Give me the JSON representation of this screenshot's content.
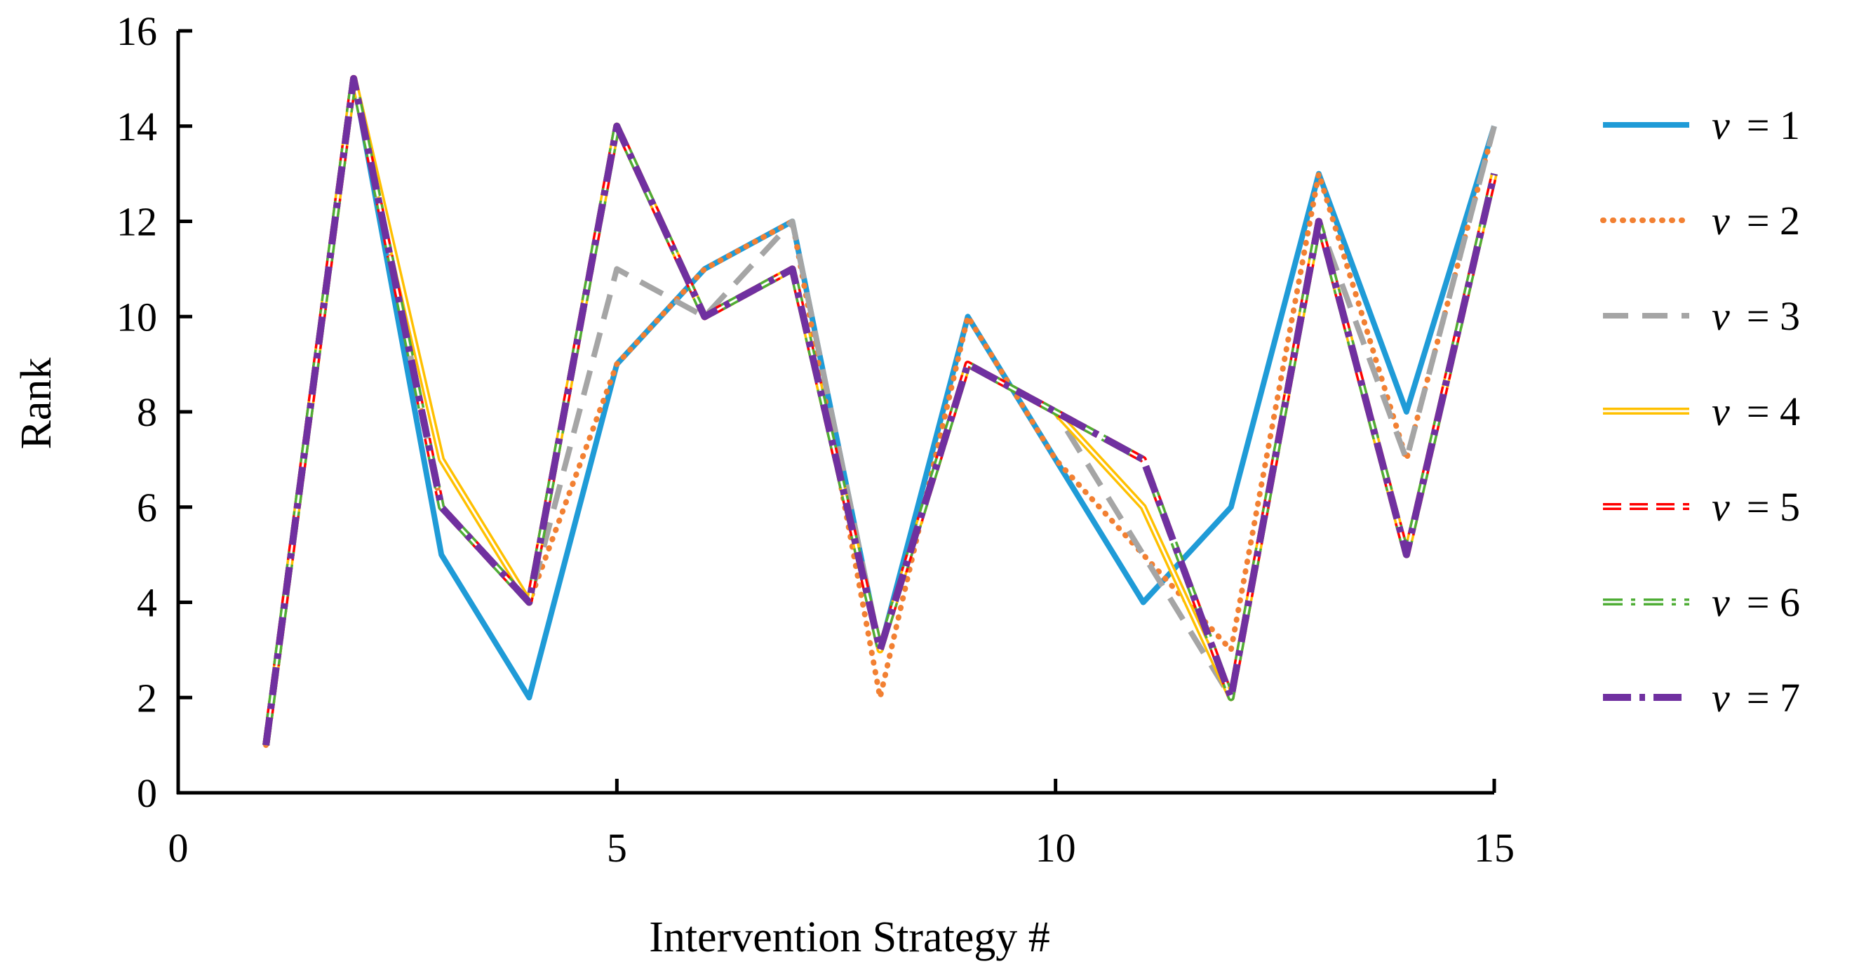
{
  "chart_data": {
    "type": "line",
    "xlabel": "Intervention Strategy #",
    "ylabel": "Rank",
    "xlim": [
      0,
      15
    ],
    "ylim": [
      0,
      16
    ],
    "xticks": [
      0,
      5,
      10,
      15
    ],
    "yticks": [
      0,
      2,
      4,
      6,
      8,
      10,
      12,
      14,
      16
    ],
    "grid": false,
    "legend": "right",
    "x": [
      1,
      2,
      3,
      4,
      5,
      6,
      7,
      8,
      9,
      10,
      11,
      12,
      13,
      14,
      15
    ],
    "series": [
      {
        "name": "v = 1",
        "var": "v",
        "eq": "= 1",
        "color": "#1F9BD7",
        "style": "solid",
        "values": [
          1,
          15,
          5,
          2,
          9,
          11,
          12,
          3,
          10,
          7,
          4,
          6,
          13,
          8,
          14
        ]
      },
      {
        "name": "v = 2",
        "var": "v",
        "eq": "= 2",
        "color": "#F28032",
        "style": "dotted",
        "values": [
          1,
          15,
          6,
          4,
          9,
          11,
          12,
          2,
          10,
          7,
          5,
          3,
          13,
          7,
          14
        ]
      },
      {
        "name": "v = 3",
        "var": "v",
        "eq": "= 3",
        "color": "#A5A5A5",
        "style": "dashed",
        "values": [
          1,
          15,
          6,
          4,
          11,
          10,
          12,
          3,
          9,
          8,
          5,
          2,
          12,
          7,
          14
        ]
      },
      {
        "name": "v = 4",
        "var": "v",
        "eq": "= 4",
        "color": "#FFC000",
        "style": "double",
        "values": [
          1,
          15,
          7,
          4,
          14,
          10,
          11,
          3,
          9,
          8,
          6,
          2,
          12,
          5,
          13
        ]
      },
      {
        "name": "v = 5",
        "var": "v",
        "eq": "= 5",
        "color": "#FF0000",
        "style": "double-dashed",
        "values": [
          1,
          15,
          6,
          4,
          14,
          10,
          11,
          3,
          9,
          8,
          7,
          2,
          12,
          5,
          13
        ]
      },
      {
        "name": "v = 6",
        "var": "v",
        "eq": "= 6",
        "color": "#4EAD35",
        "style": "double-dashdot",
        "values": [
          1,
          15,
          6,
          4,
          14,
          10,
          11,
          3,
          9,
          8,
          7,
          2,
          12,
          5,
          13
        ]
      },
      {
        "name": "v = 7",
        "var": "v",
        "eq": "= 7",
        "color": "#7030A0",
        "style": "dashdot",
        "values": [
          1,
          15,
          6,
          4,
          14,
          10,
          11,
          3,
          9,
          8,
          7,
          2,
          12,
          5,
          13
        ]
      }
    ]
  }
}
